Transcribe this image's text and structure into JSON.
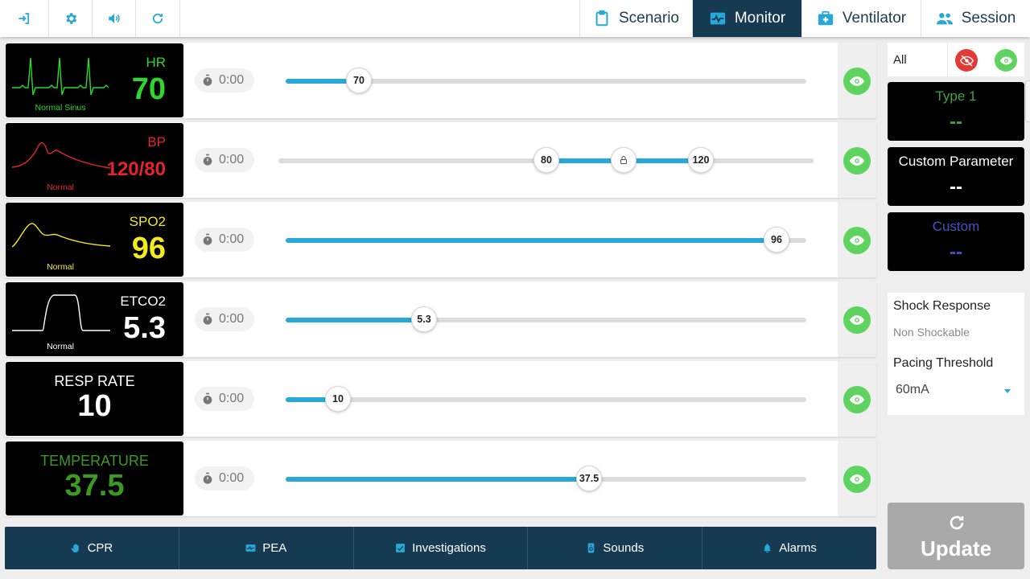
{
  "toolbar": {
    "icons": [
      "logout-icon",
      "gear-icon",
      "volume-icon",
      "refresh-icon"
    ],
    "tabs": [
      {
        "label": "Scenario",
        "icon": "clipboard-icon",
        "active": false
      },
      {
        "label": "Monitor",
        "icon": "monitor-wave-icon",
        "active": true
      },
      {
        "label": "Ventilator",
        "icon": "medical-kit-icon",
        "active": false
      },
      {
        "label": "Session",
        "icon": "people-icon",
        "active": false
      }
    ]
  },
  "vitals": [
    {
      "name": "HR",
      "value": "70",
      "sub": "Normal Sinus",
      "color": "#2bd82b",
      "timer": "0:00",
      "slider_value": "70",
      "slider_fraction": 0.14
    },
    {
      "name": "BP",
      "value": "120/80",
      "sub": "Normal",
      "color": "#e3242b",
      "timer": "0:00",
      "slider_low": "80",
      "slider_high": "120",
      "low_fraction": 0.5,
      "high_fraction": 0.79
    },
    {
      "name": "SPO2",
      "value": "96",
      "sub": "Normal",
      "color": "#f2ea1f",
      "timer": "0:00",
      "slider_value": "96",
      "slider_fraction": 0.943
    },
    {
      "name": "ETCO2",
      "value": "5.3",
      "sub": "Normal",
      "color": "#ffffff",
      "timer": "0:00",
      "slider_value": "5.3",
      "slider_fraction": 0.266
    },
    {
      "name": "RESP RATE",
      "value": "10",
      "sub": "",
      "color": "#ffffff",
      "timer": "0:00",
      "slider_value": "10",
      "slider_fraction": 0.1
    },
    {
      "name": "TEMPERATURE",
      "value": "37.5",
      "sub": "",
      "color": "#3c9a22",
      "timer": "0:00",
      "slider_value": "37.5",
      "slider_fraction": 0.583
    }
  ],
  "bottom_bar": [
    {
      "label": "CPR",
      "icon": "hand-icon"
    },
    {
      "label": "PEA",
      "icon": "pea-icon"
    },
    {
      "label": "Investigations",
      "icon": "checklist-icon"
    },
    {
      "label": "Sounds",
      "icon": "stethoscope-icon"
    },
    {
      "label": "Alarms",
      "icon": "bell-icon"
    }
  ],
  "right_panel": {
    "all_label": "All",
    "hide_all_color": "#e53935",
    "show_all_color": "#5fd35f",
    "custom_boxes": [
      {
        "title": "Type 1",
        "value": "--",
        "color": "#43a047"
      },
      {
        "title": "Custom Parameter",
        "value": "--",
        "color": "#ffffff"
      },
      {
        "title": "Custom",
        "value": "--",
        "color": "#4b4fc4"
      }
    ],
    "shock_response_label": "Shock Response",
    "shock_response_value": "Non Shockable",
    "pacing_threshold_label": "Pacing Threshold",
    "pacing_threshold_value": "60mA",
    "update_label": "Update"
  }
}
